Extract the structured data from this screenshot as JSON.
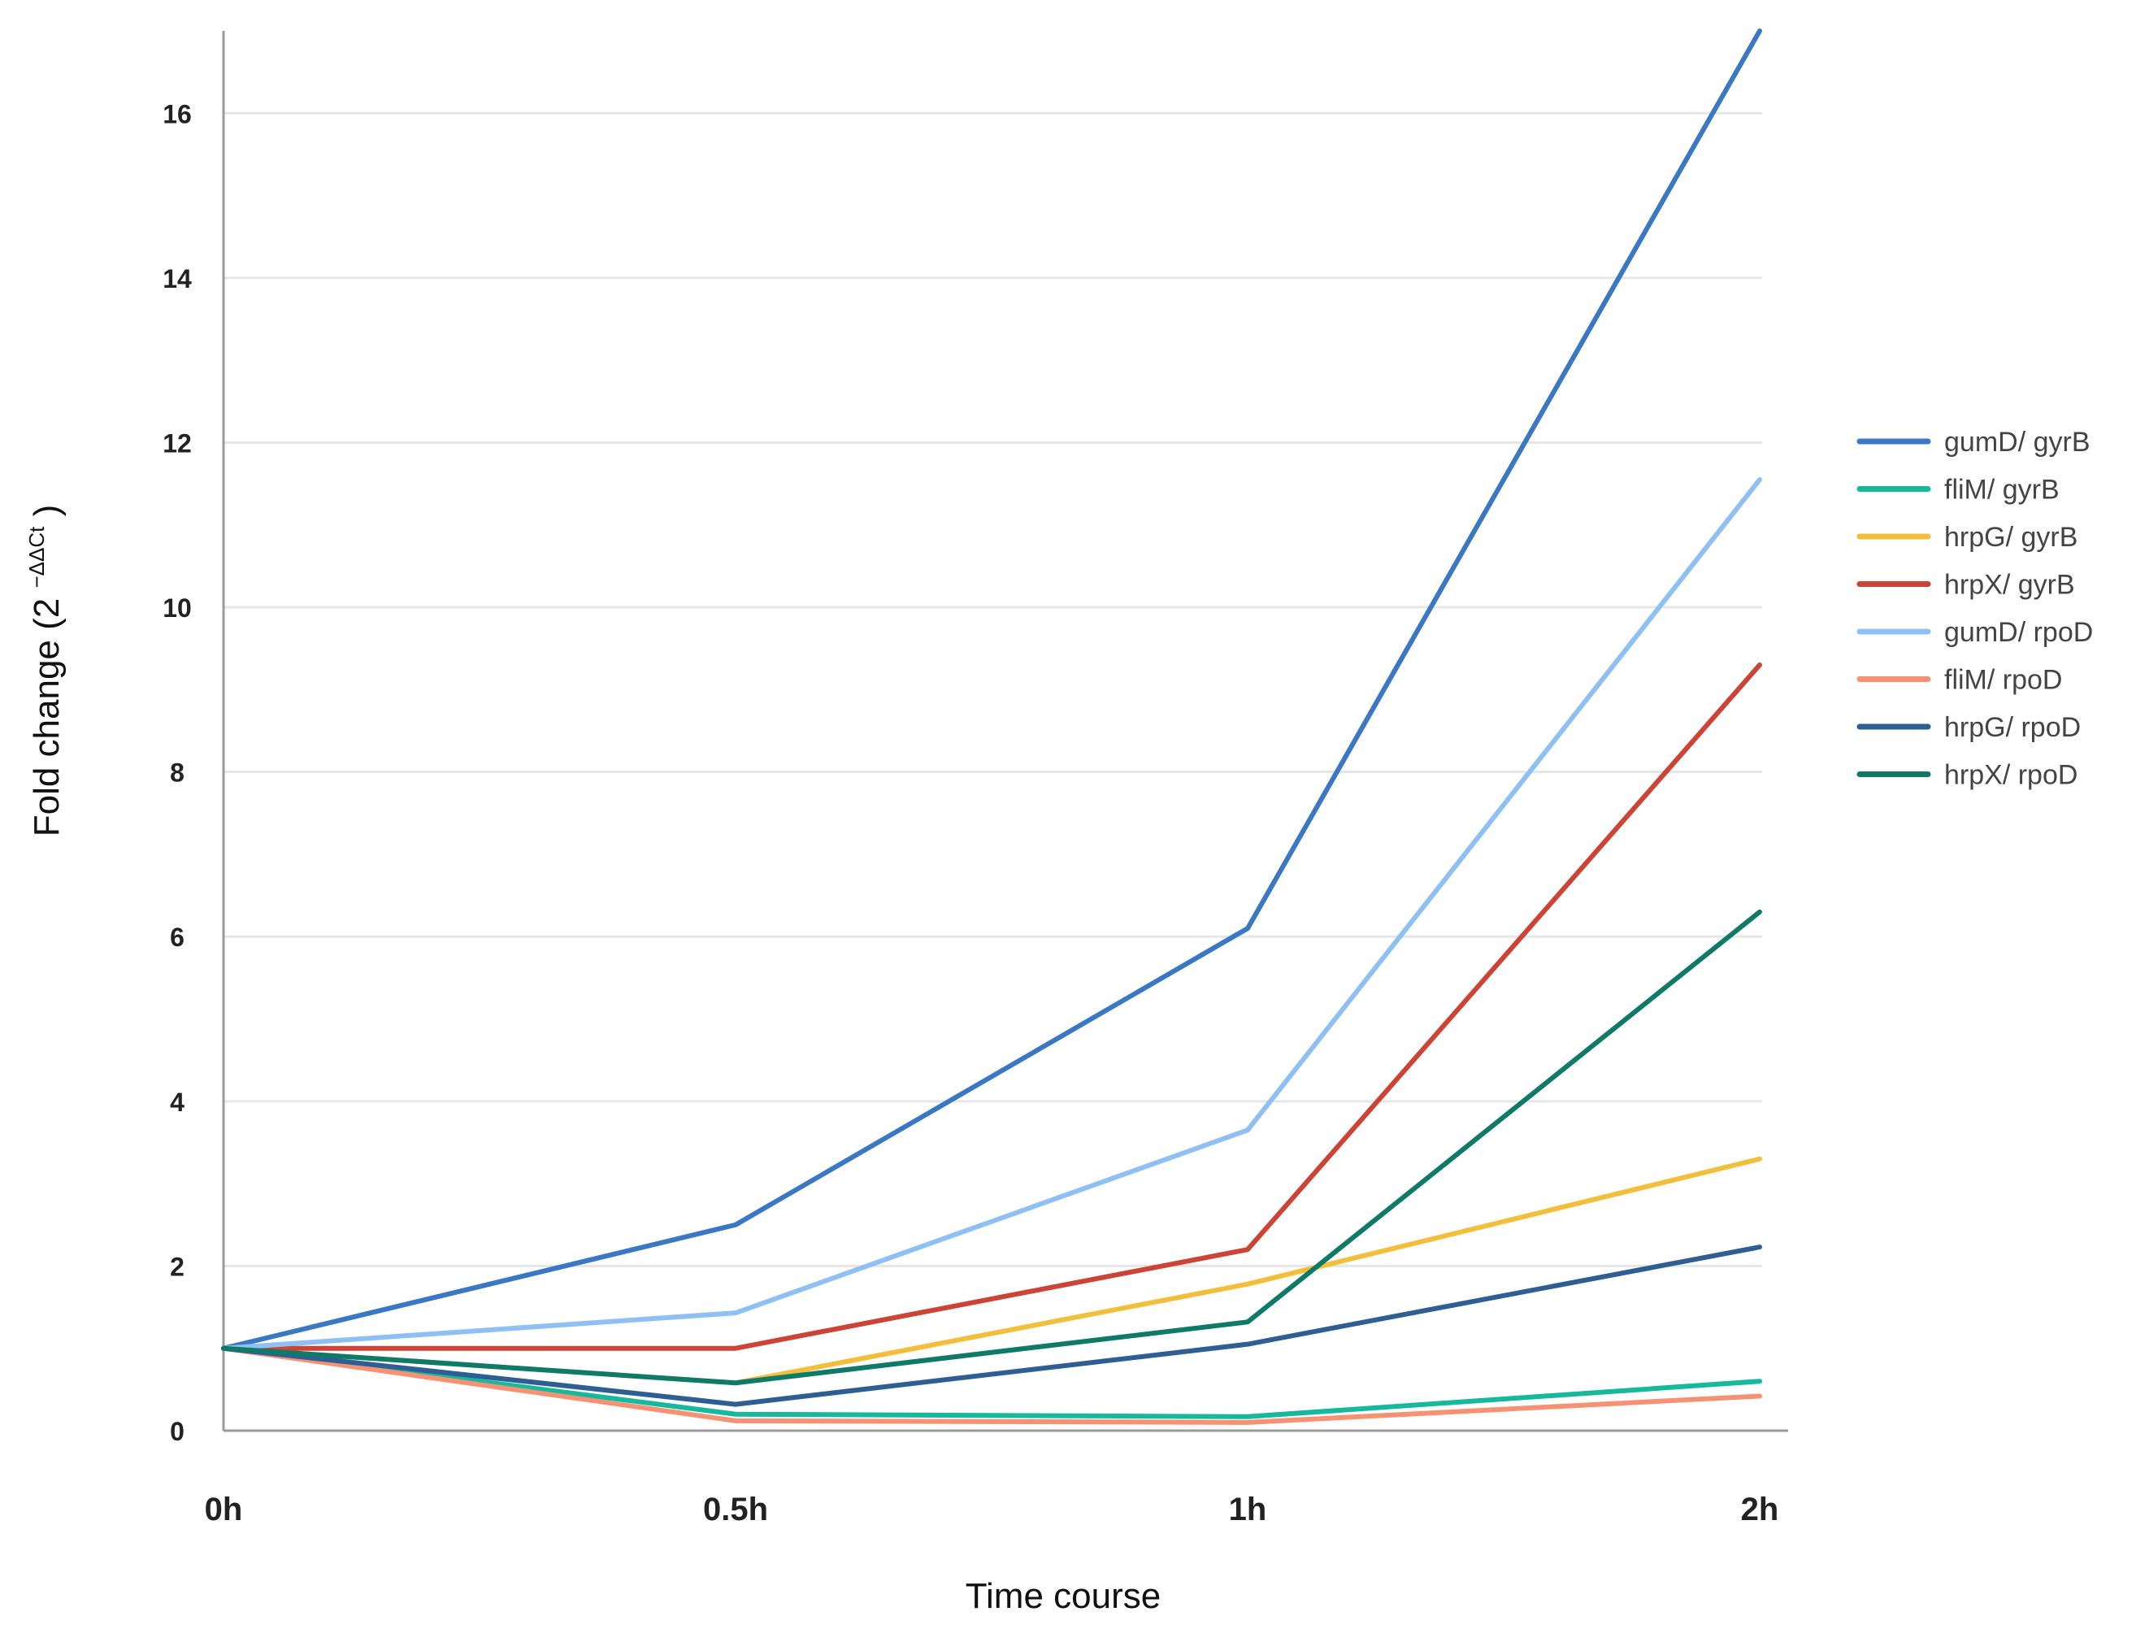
{
  "chart_data": {
    "type": "line",
    "title": "",
    "xlabel": "Time course",
    "ylabel": "Fold change (2",
    "ylabel_superscript": "−ΔΔCt",
    "ylabel_close": ")",
    "categories": [
      "0h",
      "0.5h",
      "1h",
      "2h"
    ],
    "ylim": [
      0,
      17
    ],
    "yticks": [
      0,
      2,
      4,
      6,
      8,
      10,
      12,
      14,
      16
    ],
    "grid": true,
    "legend_position": "right",
    "series": [
      {
        "name": "gumD/ gyrB",
        "color": "#3a78c3",
        "values": [
          1,
          2.5,
          6.1,
          17
        ]
      },
      {
        "name": "fliM/ gyrB",
        "color": "#17b89c",
        "values": [
          1,
          0.2,
          0.17,
          0.6
        ]
      },
      {
        "name": "hrpG/ gyrB",
        "color": "#f2bf3c",
        "values": [
          1,
          0.58,
          1.78,
          3.3
        ]
      },
      {
        "name": "hrpX/ gyrB",
        "color": "#cc4436",
        "values": [
          1,
          1.0,
          2.2,
          9.3
        ]
      },
      {
        "name": "gumD/ rpoD",
        "color": "#8ec0f3",
        "values": [
          1,
          1.43,
          3.65,
          11.55
        ]
      },
      {
        "name": "fliM/ rpoD",
        "color": "#f59273",
        "values": [
          1,
          0.12,
          0.1,
          0.42
        ]
      },
      {
        "name": "hrpG/ rpoD",
        "color": "#2f5f92",
        "values": [
          1,
          0.32,
          1.05,
          2.23
        ]
      },
      {
        "name": "hrpX/ rpoD",
        "color": "#107a68",
        "values": [
          1,
          0.58,
          1.32,
          6.3
        ]
      }
    ]
  }
}
